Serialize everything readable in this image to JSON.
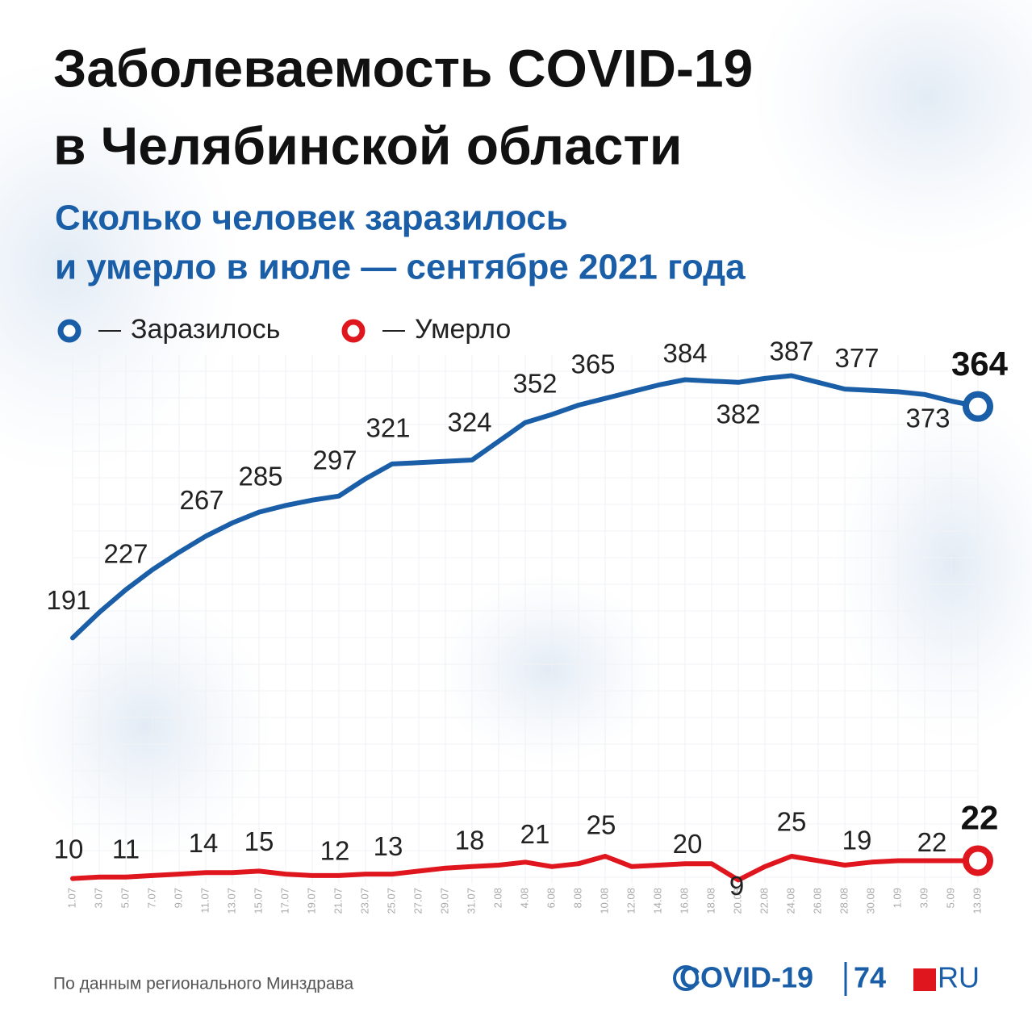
{
  "chart_data": {
    "type": "line",
    "title": [
      "Заболеваемость COVID-19",
      "в Челябинской области"
    ],
    "subtitle": [
      "Сколько человек заразилось",
      "и умерло в июле — сентябре 2021 года"
    ],
    "categories": [
      "1.07",
      "3.07",
      "5.07",
      "7.07",
      "9.07",
      "11.07",
      "13.07",
      "15.07",
      "17.07",
      "19.07",
      "21.07",
      "23.07",
      "25.07",
      "27.07",
      "29.07",
      "31.07",
      "2.08",
      "4.08",
      "6.08",
      "8.08",
      "10.08",
      "12.08",
      "14.08",
      "16.08",
      "18.08",
      "20.08",
      "22.08",
      "24.08",
      "26.08",
      "28.08",
      "30.08",
      "1.09",
      "3.09",
      "5.09",
      "13.09"
    ],
    "series": [
      {
        "name": "Заразилось",
        "color": "#1a5ea8",
        "values": [
          191,
          210,
          227,
          242,
          255,
          267,
          277,
          285,
          290,
          294,
          297,
          310,
          321,
          322,
          323,
          324,
          338,
          352,
          358,
          365,
          370,
          375,
          380,
          384,
          383,
          382,
          385,
          387,
          382,
          377,
          376,
          375,
          373,
          368,
          364
        ]
      },
      {
        "name": "Умерло",
        "color": "#e0161e",
        "axis": "y2",
        "values": [
          10,
          11,
          11,
          12,
          13,
          14,
          14,
          15,
          13,
          12,
          12,
          13,
          13,
          15,
          17,
          18,
          19,
          21,
          18,
          20,
          25,
          18,
          19,
          20,
          20,
          9,
          18,
          25,
          22,
          19,
          21,
          22,
          22,
          22,
          22
        ]
      }
    ],
    "ylim": [
      0,
      400
    ],
    "y2lim": [
      0,
      360
    ],
    "grid": true,
    "source": "По данным регионального Минздрава",
    "logo": [
      "COVID-19",
      "74",
      "RU"
    ]
  }
}
